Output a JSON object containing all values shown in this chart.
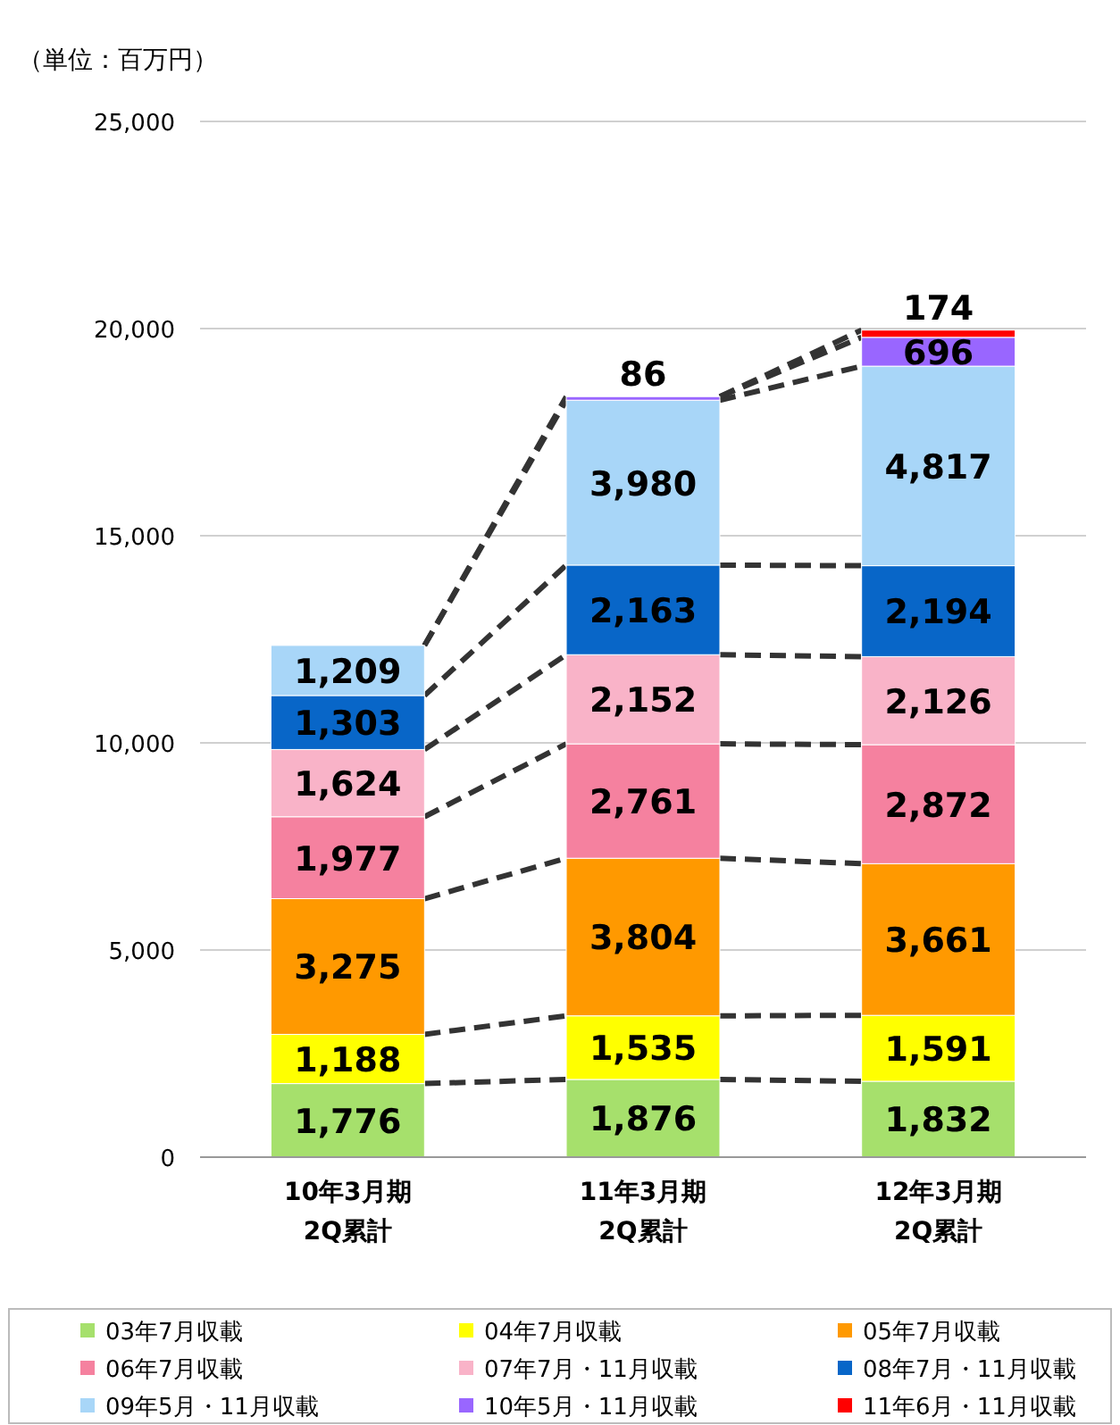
{
  "chart_data": {
    "type": "bar",
    "stacked": true,
    "ylabel": "（単位：百万円）",
    "categories": [
      "10年3月期\n2Q累計",
      "11年3月期\n2Q累計",
      "12年3月期\n2Q累計"
    ],
    "series": [
      {
        "name": "03年7月収載",
        "color": "#a6e06c",
        "values": [
          1776,
          1876,
          1832
        ],
        "value_labels": [
          "1,776",
          "1,876",
          "1,832"
        ]
      },
      {
        "name": "04年7月収載",
        "color": "#ffff00",
        "values": [
          1188,
          1535,
          1591
        ],
        "value_labels": [
          "1,188",
          "1,535",
          "1,591"
        ]
      },
      {
        "name": "05年7月収載",
        "color": "#ff9900",
        "values": [
          3275,
          3804,
          3661
        ],
        "value_labels": [
          "3,275",
          "3,804",
          "3,661"
        ]
      },
      {
        "name": "06年7月収載",
        "color": "#f5819f",
        "values": [
          1977,
          2761,
          2872
        ],
        "value_labels": [
          "1,977",
          "2,761",
          "2,872"
        ]
      },
      {
        "name": "07年7月・11月収載",
        "color": "#f9b3c8",
        "values": [
          1624,
          2152,
          2126
        ],
        "value_labels": [
          "1,624",
          "2,152",
          "2,126"
        ]
      },
      {
        "name": "08年7月・11月収載",
        "color": "#0866c8",
        "values": [
          1303,
          2163,
          2194
        ],
        "value_labels": [
          "1,303",
          "2,163",
          "2,194"
        ]
      },
      {
        "name": "09年5月・11月収載",
        "color": "#a8d6f8",
        "values": [
          1209,
          3980,
          4817
        ],
        "value_labels": [
          "1,209",
          "3,980",
          "4,817"
        ]
      },
      {
        "name": "10年5月・11月収載",
        "color": "#9966ff",
        "values": [
          null,
          86,
          696
        ],
        "value_labels": [
          null,
          "86",
          "696"
        ]
      },
      {
        "name": "11年6月・11月収載",
        "color": "#ff0000",
        "values": [
          null,
          null,
          174
        ],
        "value_labels": [
          null,
          null,
          "174"
        ]
      }
    ],
    "ylim": [
      0,
      25000
    ],
    "yticks": [
      0,
      {
        "value": 5000,
        "label": "5,000"
      },
      {
        "value": 10000,
        "label": "10,000"
      },
      {
        "value": 15000,
        "label": "15,000"
      },
      {
        "value": 20000,
        "label": "20,000"
      },
      {
        "value": 25000,
        "label": "25,000"
      }
    ],
    "grid": "y",
    "legend": "bottom"
  }
}
